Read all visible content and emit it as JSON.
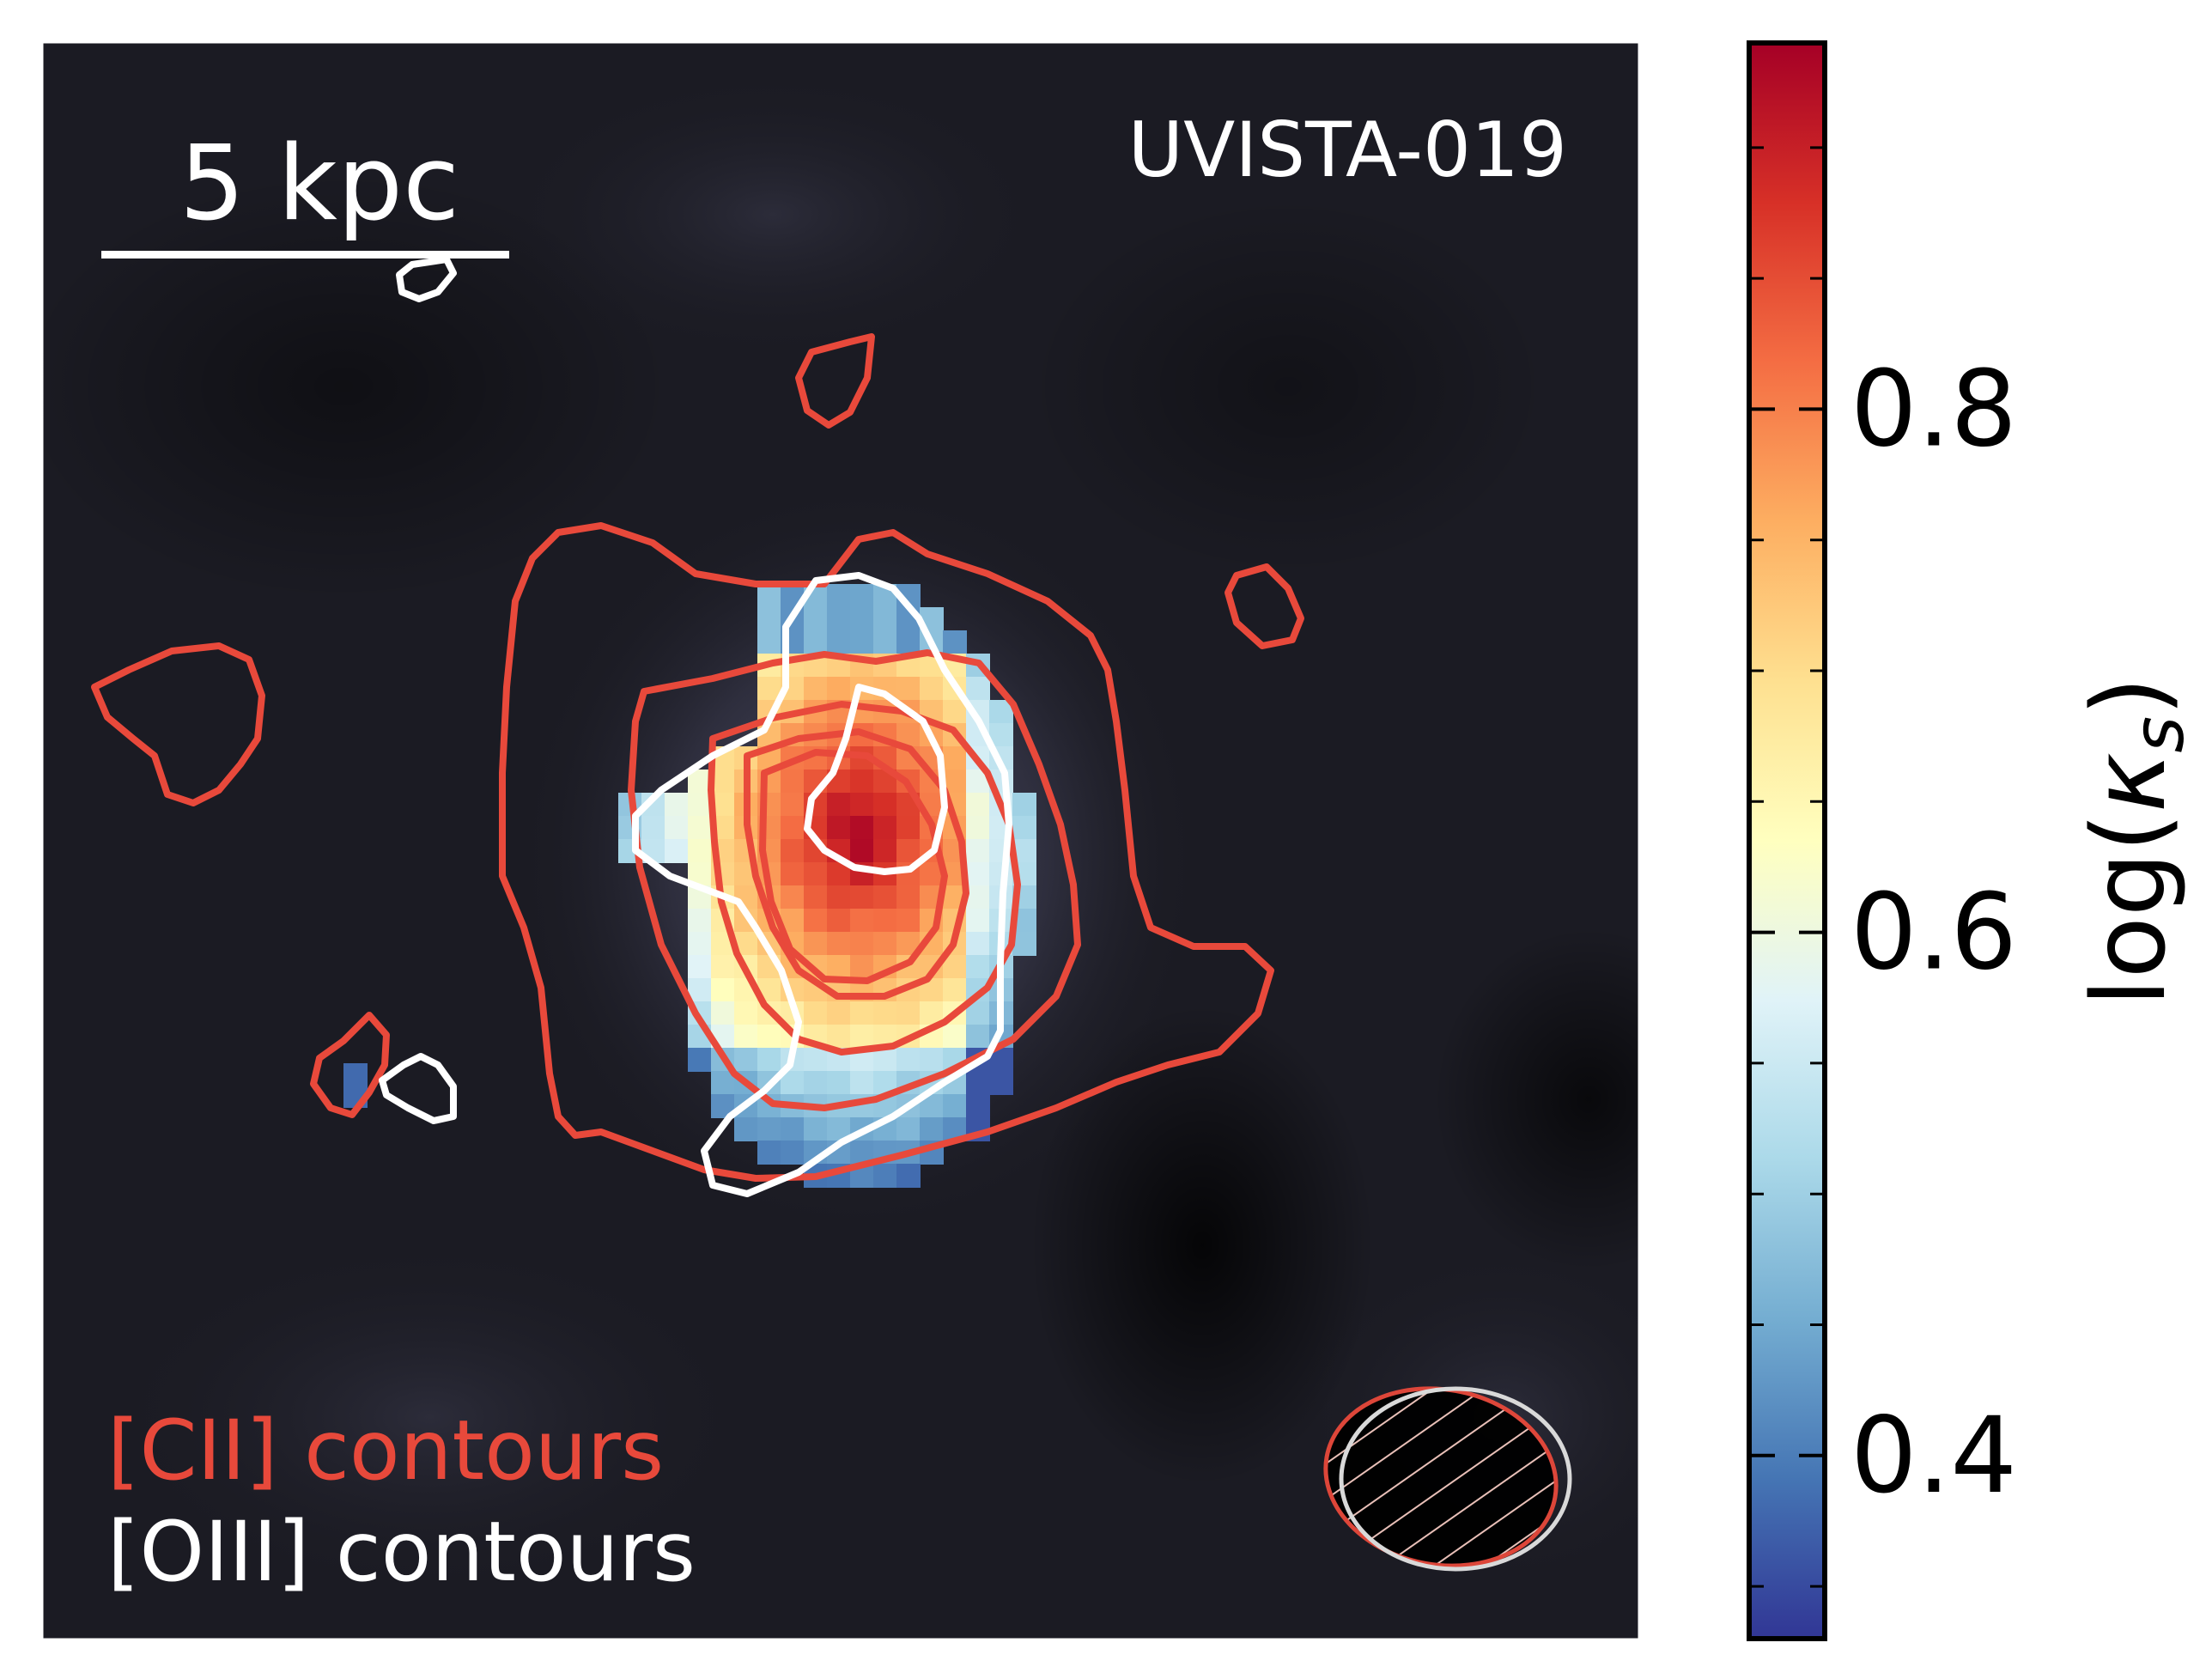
{
  "chart_data": {
    "type": "heatmap",
    "title": "UVISTA-019",
    "colorbar": {
      "label": "log(κs)",
      "label_prefix": "log(",
      "label_symbol": "κ",
      "label_sub": "s",
      "label_suffix": ")",
      "range": [
        0.33,
        0.94
      ],
      "major_ticks": [
        0.4,
        0.6,
        0.8
      ],
      "tick_labels": [
        "0.4",
        "0.6",
        "0.8"
      ],
      "minor_step": 0.05,
      "colormap": "RdYlBu_r",
      "colormap_stops": [
        "#313695",
        "#4575b4",
        "#74add1",
        "#abd9e9",
        "#e0f3f8",
        "#ffffbf",
        "#fee090",
        "#fdae61",
        "#f46d43",
        "#d73027",
        "#a50026"
      ]
    },
    "scale_bar": {
      "label": "5 kpc",
      "length_kpc": 5
    },
    "legend": {
      "placement": "bottom-left",
      "entries": [
        {
          "label": "[CII] contours",
          "color": "#e8493b"
        },
        {
          "label": "[OIII] contours",
          "color": "#ffffff"
        }
      ]
    },
    "beam": {
      "placement": "bottom-right",
      "hatched": true
    },
    "colors": {
      "background": "#1b1b23",
      "cii": "#e8493b",
      "oiii": "#ffffff"
    }
  }
}
